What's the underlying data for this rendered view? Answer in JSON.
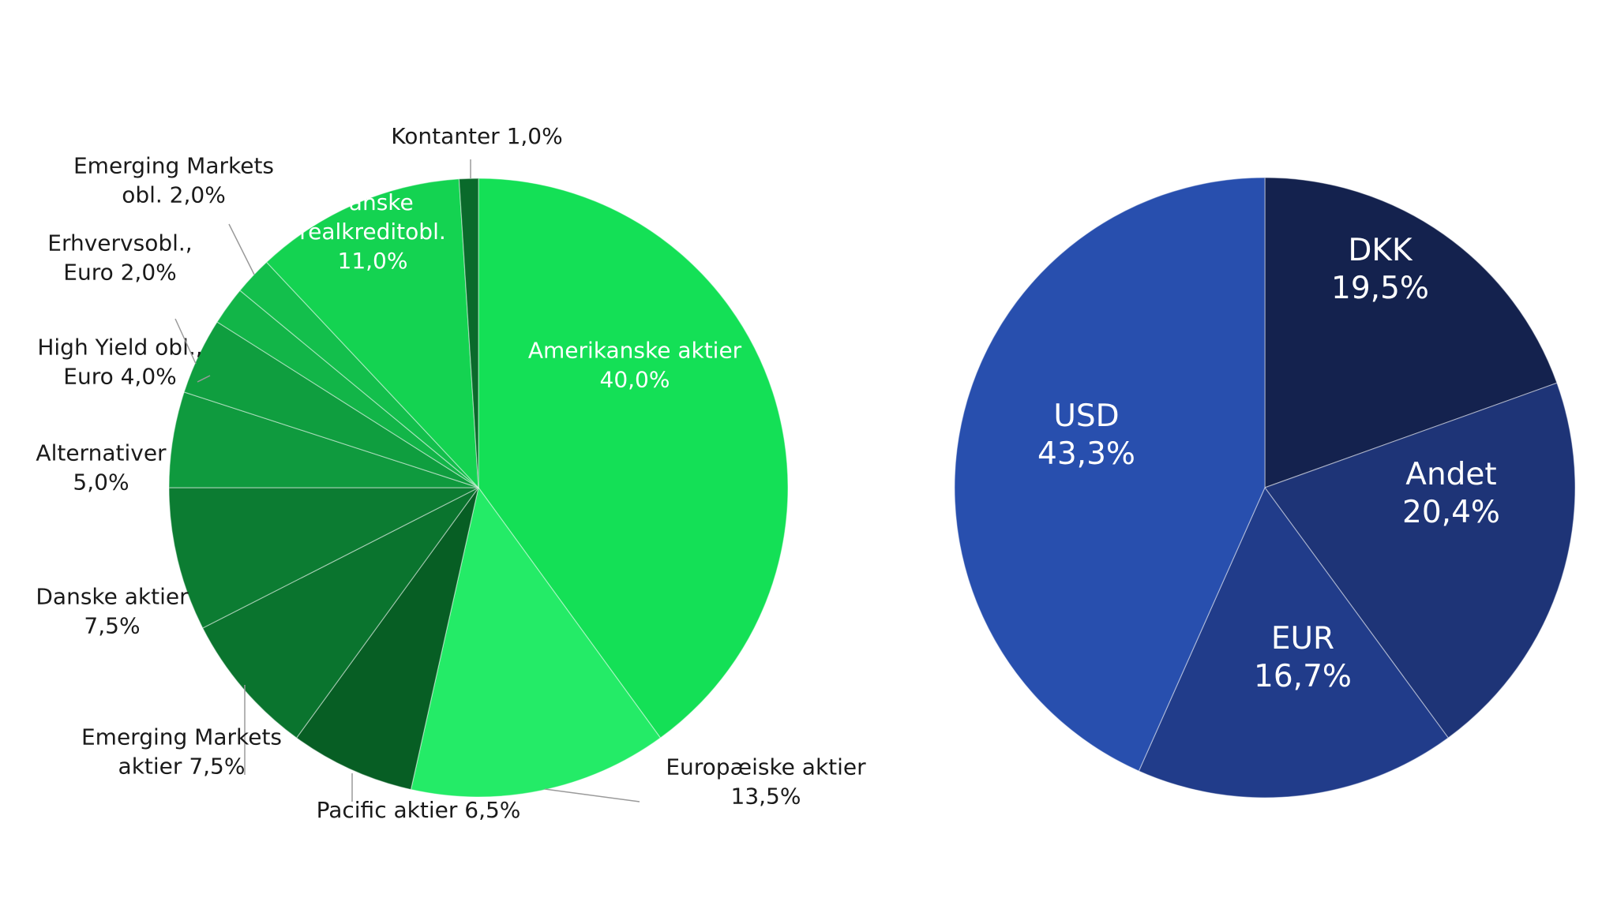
{
  "chart_data": [
    {
      "type": "pie",
      "title": "",
      "slices": [
        {
          "label": [
            "Amerikanske aktier",
            "40,0%"
          ],
          "value": 40.0,
          "color": "#14e056"
        },
        {
          "label": [
            "Europæiske aktier",
            "13,5%"
          ],
          "value": 13.5,
          "color": "#24eb67"
        },
        {
          "label": [
            "Pacific aktier 6,5%"
          ],
          "value": 6.5,
          "color": "#075e24"
        },
        {
          "label": [
            "Emerging Markets",
            "aktier 7,5%"
          ],
          "value": 7.5,
          "color": "#0a742e"
        },
        {
          "label": [
            "Danske aktier",
            "7,5%"
          ],
          "value": 7.5,
          "color": "#0c7c32"
        },
        {
          "label": [
            "Alternativer",
            "5,0%"
          ],
          "value": 5.0,
          "color": "#0f9a3e"
        },
        {
          "label": [
            "High Yield obl.,",
            "Euro 4,0%"
          ],
          "value": 4.0,
          "color": "#0f9e3f"
        },
        {
          "label": [
            "Erhvervsobl.,",
            "Euro 2,0%"
          ],
          "value": 2.0,
          "color": "#12b548"
        },
        {
          "label": [
            "Emerging Markets",
            "obl. 2,0%"
          ],
          "value": 2.0,
          "color": "#13bf4c"
        },
        {
          "label": [
            "Danske",
            "realkreditobl.",
            "11,0%"
          ],
          "value": 11.0,
          "color": "#14d351"
        },
        {
          "label": [
            "Kontanter 1,0%"
          ],
          "value": 1.0,
          "color": "#0a6a2b"
        }
      ]
    },
    {
      "type": "pie",
      "title": "",
      "slices": [
        {
          "label": [
            "DKK",
            "19,5%"
          ],
          "value": 19.5,
          "color": "#14224e"
        },
        {
          "label": [
            "Andet",
            "20,4%"
          ],
          "value": 20.4,
          "color": "#1e3477"
        },
        {
          "label": [
            "EUR",
            "16,7%"
          ],
          "value": 16.7,
          "color": "#213c8a"
        },
        {
          "label": [
            "USD",
            "43,3%"
          ],
          "value": 43.3,
          "color": "#284fae"
        }
      ]
    }
  ]
}
